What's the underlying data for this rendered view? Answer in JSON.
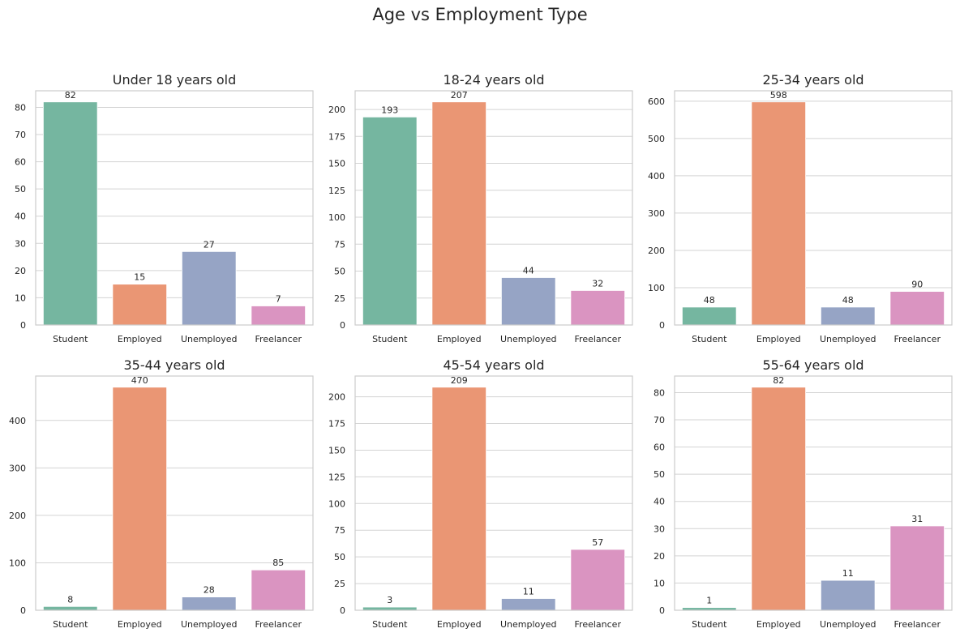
{
  "title": "Age vs Employment Type",
  "colors": {
    "Student": "#75b6a0",
    "Employed": "#ea9674",
    "Unemployed": "#96a4c5",
    "Freelancer": "#da94c1"
  },
  "chart_data": [
    {
      "type": "bar",
      "title": "Under 18 years old",
      "categories": [
        "Student",
        "Employed",
        "Unemployed",
        "Freelancer"
      ],
      "values": [
        82,
        15,
        27,
        7
      ],
      "ylim": [
        0,
        86.1
      ],
      "yticks": [
        0,
        10,
        20,
        30,
        40,
        50,
        60,
        70,
        80
      ]
    },
    {
      "type": "bar",
      "title": "18-24 years old",
      "categories": [
        "Student",
        "Employed",
        "Unemployed",
        "Freelancer"
      ],
      "values": [
        193,
        207,
        44,
        32
      ],
      "ylim": [
        0,
        217.35
      ],
      "yticks": [
        0,
        25,
        50,
        75,
        100,
        125,
        150,
        175,
        200
      ]
    },
    {
      "type": "bar",
      "title": "25-34 years old",
      "categories": [
        "Student",
        "Employed",
        "Unemployed",
        "Freelancer"
      ],
      "values": [
        48,
        598,
        48,
        90
      ],
      "ylim": [
        0,
        627.9
      ],
      "yticks": [
        0,
        100,
        200,
        300,
        400,
        500,
        600
      ]
    },
    {
      "type": "bar",
      "title": "35-44 years old",
      "categories": [
        "Student",
        "Employed",
        "Unemployed",
        "Freelancer"
      ],
      "values": [
        8,
        470,
        28,
        85
      ],
      "ylim": [
        0,
        493.5
      ],
      "yticks": [
        0,
        100,
        200,
        300,
        400
      ]
    },
    {
      "type": "bar",
      "title": "45-54 years old",
      "categories": [
        "Student",
        "Employed",
        "Unemployed",
        "Freelancer"
      ],
      "values": [
        3,
        209,
        11,
        57
      ],
      "ylim": [
        0,
        219.45
      ],
      "yticks": [
        0,
        25,
        50,
        75,
        100,
        125,
        150,
        175,
        200
      ]
    },
    {
      "type": "bar",
      "title": "55-64 years old",
      "categories": [
        "Student",
        "Employed",
        "Unemployed",
        "Freelancer"
      ],
      "values": [
        1,
        82,
        11,
        31
      ],
      "ylim": [
        0,
        86.1
      ],
      "yticks": [
        0,
        10,
        20,
        30,
        40,
        50,
        60,
        70,
        80
      ]
    }
  ]
}
